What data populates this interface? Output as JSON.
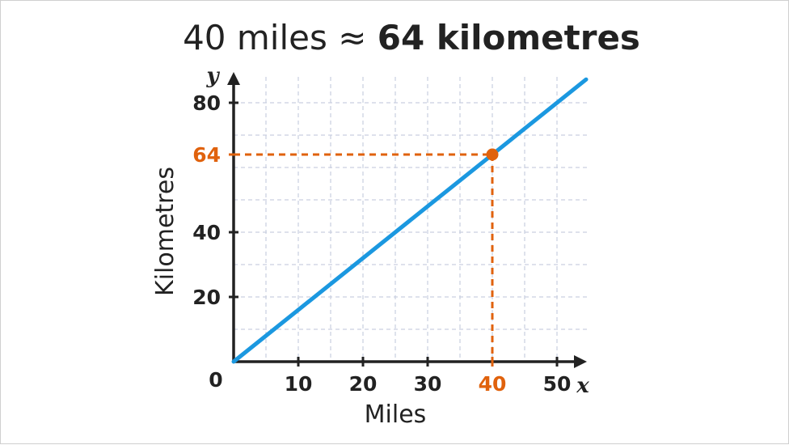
{
  "chart_data": {
    "type": "line",
    "title_prefix": "40 miles ≈ ",
    "title_highlight": "64 kilometres",
    "xlabel": "Miles",
    "ylabel": "Kilometres",
    "x_var": "x",
    "y_var": "y",
    "origin_label": "0",
    "xlim": [
      0,
      55
    ],
    "ylim": [
      0,
      88
    ],
    "grid": true,
    "x_ticks": [
      {
        "value": 10,
        "label": "10"
      },
      {
        "value": 20,
        "label": "20"
      },
      {
        "value": 30,
        "label": "30"
      },
      {
        "value": 40,
        "label": "40",
        "highlight": true
      },
      {
        "value": 50,
        "label": "50"
      }
    ],
    "y_ticks": [
      {
        "value": 20,
        "label": "20"
      },
      {
        "value": 40,
        "label": "40"
      },
      {
        "value": 64,
        "label": "64",
        "highlight": true
      },
      {
        "value": 80,
        "label": "80"
      }
    ],
    "line": {
      "x": [
        0,
        54.5
      ],
      "y": [
        0,
        87.2
      ]
    },
    "highlight_point": {
      "x": 40,
      "y": 64
    },
    "colors": {
      "line": "#1b98e0",
      "highlight": "#e0620d",
      "axis": "#222222",
      "grid": "#c9cfe0"
    }
  }
}
